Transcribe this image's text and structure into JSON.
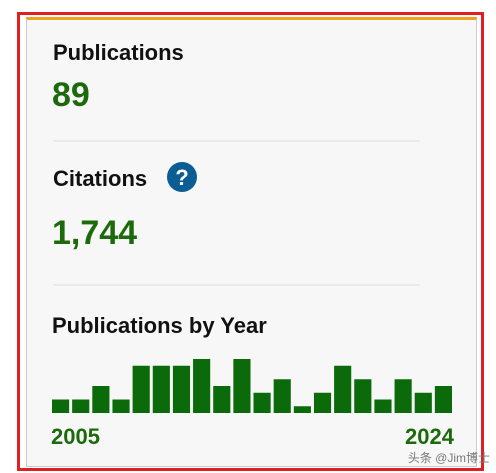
{
  "publications": {
    "label": "Publications",
    "value": "89"
  },
  "citations": {
    "label": "Citations",
    "value": "1,744",
    "help_icon": "?"
  },
  "chart_data": {
    "type": "bar",
    "title": "Publications by Year",
    "categories": [
      "2005",
      null,
      null,
      null,
      null,
      null,
      null,
      null,
      null,
      null,
      null,
      null,
      null,
      null,
      null,
      null,
      null,
      null,
      null,
      "2024"
    ],
    "values": [
      2,
      2,
      4,
      2,
      7,
      7,
      7,
      8,
      4,
      8,
      3,
      5,
      1,
      3,
      7,
      5,
      2,
      5,
      3,
      4
    ],
    "color": "#0b6b0b"
  },
  "watermark": "头条 @Jim博士"
}
